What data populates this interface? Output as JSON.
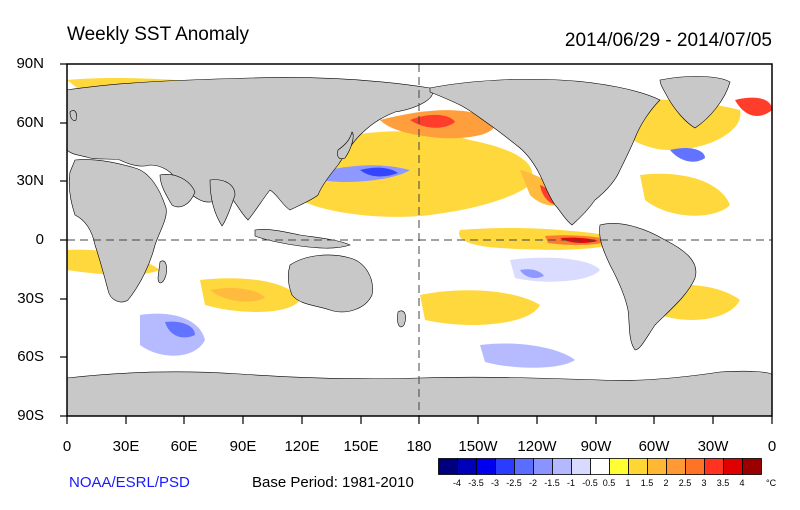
{
  "header": {
    "title": "Weekly SST Anomaly",
    "date_range": "2014/06/29 - 2014/07/05"
  },
  "map": {
    "lat_labels": [
      "90N",
      "60N",
      "30N",
      "0",
      "30S",
      "60S",
      "90S"
    ],
    "lon_labels": [
      "0",
      "30E",
      "60E",
      "90E",
      "120E",
      "150E",
      "180",
      "150W",
      "120W",
      "90W",
      "60W",
      "30W",
      "0"
    ],
    "land_color": "#c8c8c8",
    "ocean_background": "#ffffff"
  },
  "footer": {
    "credit": "NOAA/ESRL/PSD",
    "base_period": "Base Period: 1981-2010"
  },
  "colorbar": {
    "unit": "°C",
    "labels": [
      "-4",
      "-3.5",
      "-3",
      "-2.5",
      "-2",
      "-1.5",
      "-1",
      "-0.5",
      "0.5",
      "1",
      "1.5",
      "2",
      "2.5",
      "3",
      "3.5",
      "4"
    ],
    "colors": [
      "#00007f",
      "#0000b8",
      "#0000ee",
      "#2a3cff",
      "#5a6dff",
      "#8a93ff",
      "#b3b8ff",
      "#d8daff",
      "#ffffff",
      "#ffff33",
      "#ffd633",
      "#ffb833",
      "#ff9933",
      "#ff7326",
      "#ff3320",
      "#e00000",
      "#9b0000"
    ]
  }
}
